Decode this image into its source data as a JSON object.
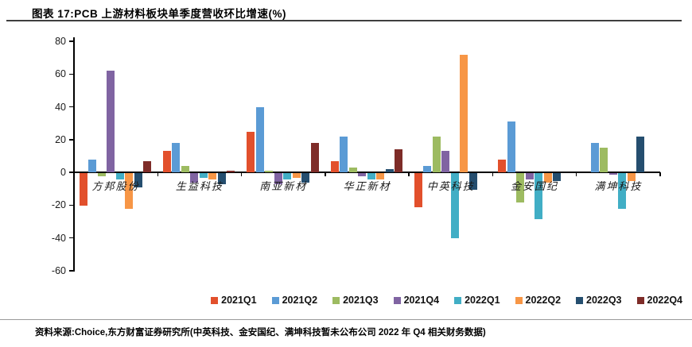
{
  "header": {
    "title": "图表 17:PCB 上游材料板块单季度营收环比增速(%)"
  },
  "footer": {
    "source": "资料来源:Choice,东方财富证券研究所(中英科技、金安国纪、满坤科技暂未公布公司 2022 年 Q4 相关财务数据)"
  },
  "chart_data": {
    "type": "bar",
    "title": "PCB 上游材料板块单季度营收环比增速(%)",
    "categories": [
      "方邦股份",
      "生益科技",
      "南亚新材",
      "华正新材",
      "中英科技",
      "金安国纪",
      "满坤科技"
    ],
    "series": [
      {
        "name": "2021Q1",
        "color": "#E2502C",
        "values": [
          -20,
          13,
          25,
          7,
          -21,
          8,
          null
        ]
      },
      {
        "name": "2021Q2",
        "color": "#5B9BD5",
        "values": [
          8,
          18,
          40,
          22,
          4,
          31,
          18
        ]
      },
      {
        "name": "2021Q3",
        "color": "#9DBB61",
        "values": [
          -2,
          4,
          1,
          3,
          22,
          -18,
          15
        ]
      },
      {
        "name": "2021Q4",
        "color": "#8064A2",
        "values": [
          62,
          -6,
          -7,
          -2,
          13,
          -4,
          -1
        ]
      },
      {
        "name": "2022Q1",
        "color": "#41AEC5",
        "values": [
          -4,
          -3,
          -4,
          -4,
          -40,
          -28,
          -22
        ]
      },
      {
        "name": "2022Q2",
        "color": "#F79646",
        "values": [
          -22,
          -4,
          -3,
          -4,
          72,
          -6,
          -5
        ]
      },
      {
        "name": "2022Q3",
        "color": "#254E6F",
        "values": [
          -9,
          -7,
          -6,
          2,
          -10,
          -5,
          22
        ]
      },
      {
        "name": "2022Q4",
        "color": "#7E2C28",
        "values": [
          7,
          1,
          18,
          14,
          null,
          null,
          null
        ]
      }
    ],
    "xlabel": "",
    "ylabel": "",
    "ylim": [
      -60,
      80
    ],
    "yticks": [
      80,
      60,
      40,
      20,
      0,
      -20,
      -40,
      -60
    ],
    "grid": false,
    "legend_position": "bottom"
  }
}
